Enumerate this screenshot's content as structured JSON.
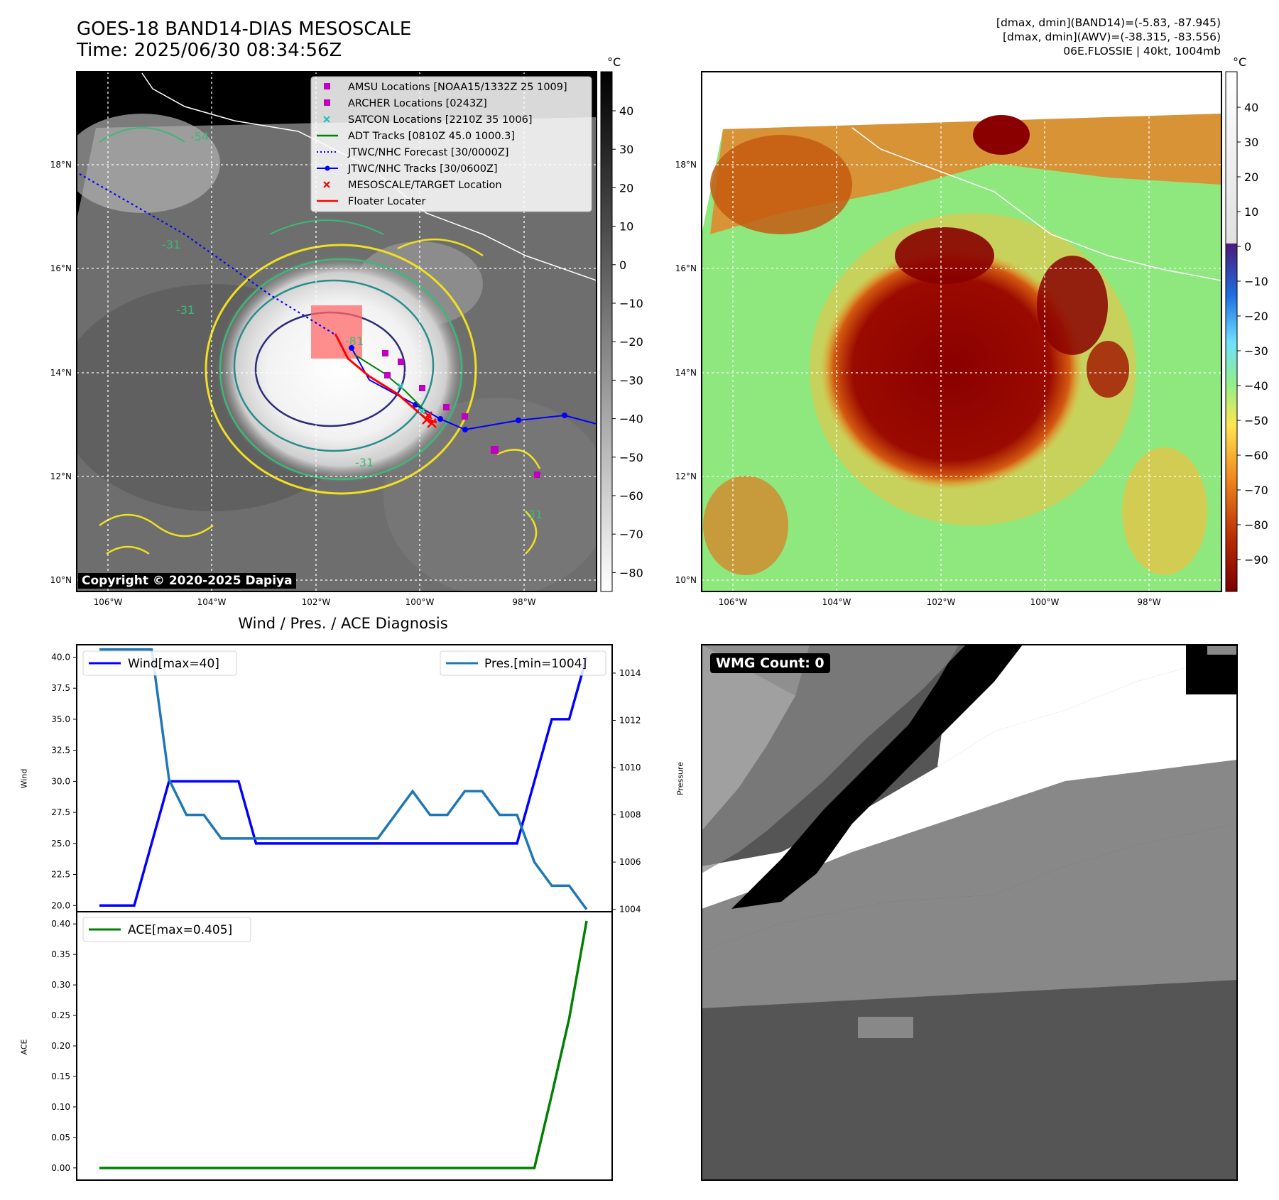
{
  "header": {
    "title": "GOES-18 BAND14-DIAS MESOSCALE",
    "time": "Time: 2025/06/30 08:34:56Z",
    "stats_band14": "[dmax, dmin](BAND14)=(-5.83, -87.945)",
    "stats_awv": "[dmax, dmin](AWV)=(-38.315, -83.556)",
    "storm": "06E.FLOSSIE | 40kt, 1004mb"
  },
  "map_ir": {
    "lon_ticks": [
      "106°W",
      "104°W",
      "102°W",
      "100°W",
      "98°W"
    ],
    "lat_ticks": [
      "18°N",
      "16°N",
      "14°N",
      "12°N",
      "10°N"
    ],
    "copyright": "Copyright © 2020-2025 Dapiya",
    "contour_labels": [
      "-54",
      "-31",
      "-81"
    ],
    "colorbar_unit": "°C",
    "colorbar_ticks": [
      "40",
      "30",
      "20",
      "10",
      "0",
      "−10",
      "−20",
      "−30",
      "−40",
      "−50",
      "−60",
      "−70",
      "−80"
    ],
    "legend": [
      {
        "label": "AMSU Locations [NOAA15/1332Z 25 1009]",
        "marker": "square",
        "color": "#c000c0"
      },
      {
        "label": "ARCHER Locations [0243Z]",
        "marker": "square",
        "color": "#c000c0"
      },
      {
        "label": "SATCON Locations [2210Z 35 1006]",
        "marker": "x",
        "color": "#20c0c0"
      },
      {
        "label": "ADT Tracks [0810Z 45.0 1000.3]",
        "marker": "line",
        "color": "#008000"
      },
      {
        "label": "JTWC/NHC Forecast [30/0000Z]",
        "marker": "dotted",
        "color": "#0000ff"
      },
      {
        "label": "JTWC/NHC Tracks [30/0600Z]",
        "marker": "line-dot",
        "color": "#0000ff"
      },
      {
        "label": "MESOSCALE/TARGET Location",
        "marker": "x",
        "color": "#ff0000"
      },
      {
        "label": "Floater Locater",
        "marker": "line",
        "color": "#ff0000"
      }
    ]
  },
  "map_awv": {
    "lon_ticks": [
      "106°W",
      "104°W",
      "102°W",
      "100°W",
      "98°W"
    ],
    "lat_ticks": [
      "18°N",
      "16°N",
      "14°N",
      "12°N",
      "10°N"
    ],
    "colorbar_unit": "°C",
    "colorbar_ticks": [
      "40",
      "30",
      "20",
      "10",
      "0",
      "−10",
      "−20",
      "−30",
      "−40",
      "−50",
      "−60",
      "−70",
      "−80",
      "−90"
    ]
  },
  "wmg": {
    "label": "WMG Count: 0"
  },
  "colors": {
    "wind": "#0000ff",
    "pressure": "#1f77b4",
    "ace": "#008000",
    "forecast": "#0000ff",
    "floater": "#ff0000"
  },
  "chart_data": [
    {
      "type": "line",
      "title": "Wind / Pres. / ACE Diagnosis",
      "ylabel": "Wind",
      "y2label": "Pressure",
      "ylim": [
        19.5,
        41
      ],
      "y2lim": [
        1003.9,
        1015.2
      ],
      "yticks": [
        "40.0",
        "37.5",
        "35.0",
        "32.5",
        "30.0",
        "27.5",
        "25.0",
        "22.5",
        "20.0"
      ],
      "y2ticks": [
        "1014",
        "1012",
        "1010",
        "1008",
        "1006",
        "1004"
      ],
      "series": [
        {
          "name": "Wind[max=40]",
          "axis": "left",
          "values": [
            20,
            20,
            20,
            25,
            30,
            30,
            30,
            30,
            30,
            25,
            25,
            25,
            25,
            25,
            25,
            25,
            25,
            25,
            25,
            25,
            25,
            25,
            25,
            25,
            25,
            30,
            35,
            35,
            40
          ]
        },
        {
          "name": "Pres.[min=1004]",
          "axis": "right",
          "values": [
            1015,
            1015,
            1015,
            1015,
            1009.5,
            1008,
            1008,
            1007,
            1007,
            1007,
            1007,
            1007,
            1007,
            1007,
            1007,
            1007,
            1007,
            1008,
            1009,
            1008,
            1008,
            1009,
            1009,
            1008,
            1008,
            1006,
            1005,
            1005,
            1004
          ]
        }
      ]
    },
    {
      "type": "line",
      "ylabel": "ACE",
      "ylim": [
        -0.02,
        0.42
      ],
      "yticks": [
        "0.40",
        "0.35",
        "0.30",
        "0.25",
        "0.20",
        "0.15",
        "0.10",
        "0.05",
        "0.00"
      ],
      "series": [
        {
          "name": "ACE[max=0.405]",
          "values": [
            0,
            0,
            0,
            0,
            0,
            0,
            0,
            0,
            0,
            0,
            0,
            0,
            0,
            0,
            0,
            0,
            0,
            0,
            0,
            0,
            0,
            0,
            0,
            0,
            0,
            0,
            0.12,
            0.245,
            0.405
          ]
        }
      ]
    }
  ]
}
